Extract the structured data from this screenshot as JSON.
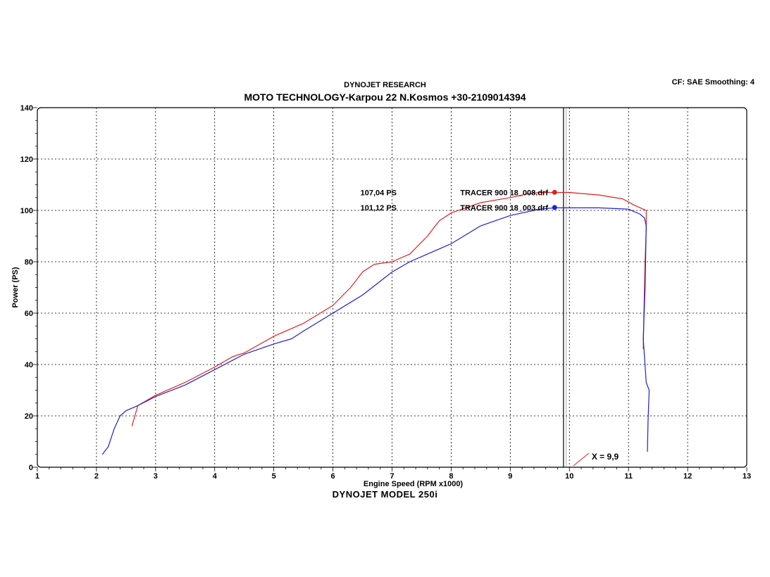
{
  "header": {
    "subtitle": "DYNOJET RESEARCH",
    "title": "MOTO TECHNOLOGY-Karpou 22 N.Kosmos +30-2109014394",
    "settings": "CF: SAE  Smoothing: 4",
    "model": "DYNOJET  MODEL  250i"
  },
  "chart_data": {
    "type": "line",
    "title": "MOTO TECHNOLOGY-Karpou 22 N.Kosmos +30-2109014394",
    "xlabel": "Engine Speed (RPM x1000)",
    "ylabel": "Power (PS)",
    "xlim": [
      1,
      13
    ],
    "ylim": [
      0,
      140
    ],
    "x_ticks": [
      "1",
      "2",
      "3",
      "4",
      "5",
      "6",
      "7",
      "8",
      "9",
      "10",
      "11",
      "12",
      "13"
    ],
    "y_ticks": [
      "0",
      "20",
      "40",
      "60",
      "80",
      "100",
      "120",
      "140"
    ],
    "grid": true,
    "cursor": {
      "x": 9.9,
      "label": "X = 9,9"
    },
    "series": [
      {
        "name": "TRACER 900 18_008.drf",
        "color": "#e02020",
        "peak_label": "107,04 PS",
        "peak": [
          9.75,
          107.04
        ],
        "points": [
          [
            2.6,
            16
          ],
          [
            2.65,
            20
          ],
          [
            2.7,
            24
          ],
          [
            3.0,
            28
          ],
          [
            3.5,
            33
          ],
          [
            4.0,
            39
          ],
          [
            4.3,
            43
          ],
          [
            4.5,
            44.5
          ],
          [
            5.0,
            51
          ],
          [
            5.5,
            56
          ],
          [
            6.0,
            63
          ],
          [
            6.3,
            70
          ],
          [
            6.5,
            76
          ],
          [
            6.7,
            79
          ],
          [
            7.0,
            80
          ],
          [
            7.3,
            83
          ],
          [
            7.6,
            90
          ],
          [
            7.8,
            96
          ],
          [
            8.0,
            99
          ],
          [
            8.5,
            103
          ],
          [
            9.0,
            105
          ],
          [
            9.3,
            106.5
          ],
          [
            9.5,
            107
          ],
          [
            9.75,
            107
          ],
          [
            10.0,
            107
          ],
          [
            10.5,
            106
          ],
          [
            10.9,
            104.5
          ],
          [
            11.1,
            102
          ],
          [
            11.2,
            101
          ],
          [
            11.3,
            100
          ],
          [
            11.3,
            93
          ],
          [
            11.28,
            80
          ],
          [
            11.26,
            60
          ],
          [
            11.25,
            46
          ]
        ]
      },
      {
        "name": "TRACER 900 18_003.drf",
        "color": "#2020d0",
        "peak_label": "101,12 PS",
        "peak": [
          9.75,
          101.12
        ],
        "points": [
          [
            2.1,
            5
          ],
          [
            2.2,
            8
          ],
          [
            2.3,
            15
          ],
          [
            2.4,
            20
          ],
          [
            2.5,
            22
          ],
          [
            2.7,
            24
          ],
          [
            3.0,
            27.5
          ],
          [
            3.5,
            32
          ],
          [
            4.0,
            38
          ],
          [
            4.5,
            44
          ],
          [
            5.0,
            48
          ],
          [
            5.3,
            50
          ],
          [
            5.5,
            53
          ],
          [
            6.0,
            60
          ],
          [
            6.5,
            67
          ],
          [
            7.0,
            76
          ],
          [
            7.3,
            80
          ],
          [
            7.6,
            83
          ],
          [
            8.0,
            87
          ],
          [
            8.5,
            94
          ],
          [
            9.0,
            98
          ],
          [
            9.5,
            100.5
          ],
          [
            9.75,
            101
          ],
          [
            10.0,
            101
          ],
          [
            10.5,
            101
          ],
          [
            11.0,
            100.5
          ],
          [
            11.2,
            98.5
          ],
          [
            11.27,
            97
          ],
          [
            11.3,
            94
          ],
          [
            11.28,
            70
          ],
          [
            11.25,
            50
          ],
          [
            11.3,
            33
          ],
          [
            11.35,
            30
          ],
          [
            11.33,
            18
          ],
          [
            11.32,
            6
          ]
        ]
      }
    ]
  }
}
